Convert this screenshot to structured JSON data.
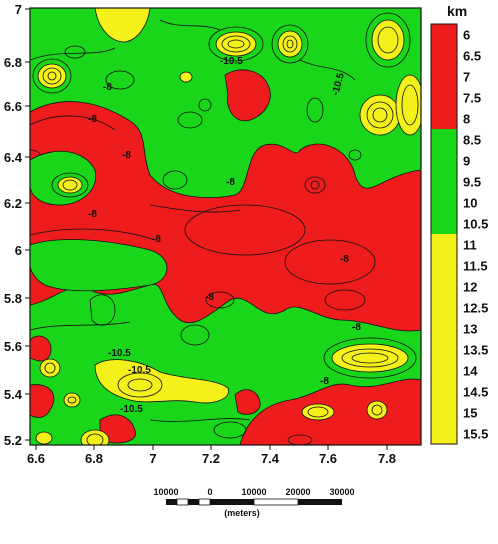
{
  "legend": {
    "title": "km",
    "colors": {
      "red": "#ee1c1c",
      "green": "#1ad61a",
      "yellow": "#f4f01a"
    },
    "entries": [
      {
        "label": "6",
        "color": "#ee1c1c"
      },
      {
        "label": "6.5",
        "color": "#ee1c1c"
      },
      {
        "label": "7",
        "color": "#ee1c1c"
      },
      {
        "label": "7.5",
        "color": "#ee1c1c"
      },
      {
        "label": "8",
        "color": "#ee1c1c"
      },
      {
        "label": "8.5",
        "color": "#1ad61a"
      },
      {
        "label": "9",
        "color": "#1ad61a"
      },
      {
        "label": "9.5",
        "color": "#1ad61a"
      },
      {
        "label": "10",
        "color": "#1ad61a"
      },
      {
        "label": "10.5",
        "color": "#1ad61a"
      },
      {
        "label": "11",
        "color": "#f4f01a"
      },
      {
        "label": "11.5",
        "color": "#f4f01a"
      },
      {
        "label": "12",
        "color": "#f4f01a"
      },
      {
        "label": "12.5",
        "color": "#f4f01a"
      },
      {
        "label": "13",
        "color": "#f4f01a"
      },
      {
        "label": "13.5",
        "color": "#f4f01a"
      },
      {
        "label": "14",
        "color": "#f4f01a"
      },
      {
        "label": "14.5",
        "color": "#f4f01a"
      },
      {
        "label": "15",
        "color": "#f4f01a"
      },
      {
        "label": "15.5",
        "color": "#f4f01a"
      }
    ]
  },
  "axes": {
    "x_ticks": [
      "6.6",
      "6.8",
      "7",
      "7.2",
      "7.4",
      "7.6",
      "7.8"
    ],
    "y_ticks": [
      "7",
      "6.8",
      "6.6",
      "6.4",
      "6.2",
      "6",
      "5.8",
      "5.6",
      "5.4",
      "5.2"
    ]
  },
  "contour_labels": [
    "-10.5",
    "-10.5",
    "-8",
    "-8",
    "-8",
    "-8",
    "-8",
    "-8",
    "-8",
    "-10.5",
    "-10.5",
    "-8",
    "-8",
    "-10.5",
    "-8"
  ],
  "scale_bar": {
    "labels": [
      "10000",
      "0",
      "10000",
      "20000",
      "30000"
    ],
    "unit": "(meters)"
  }
}
